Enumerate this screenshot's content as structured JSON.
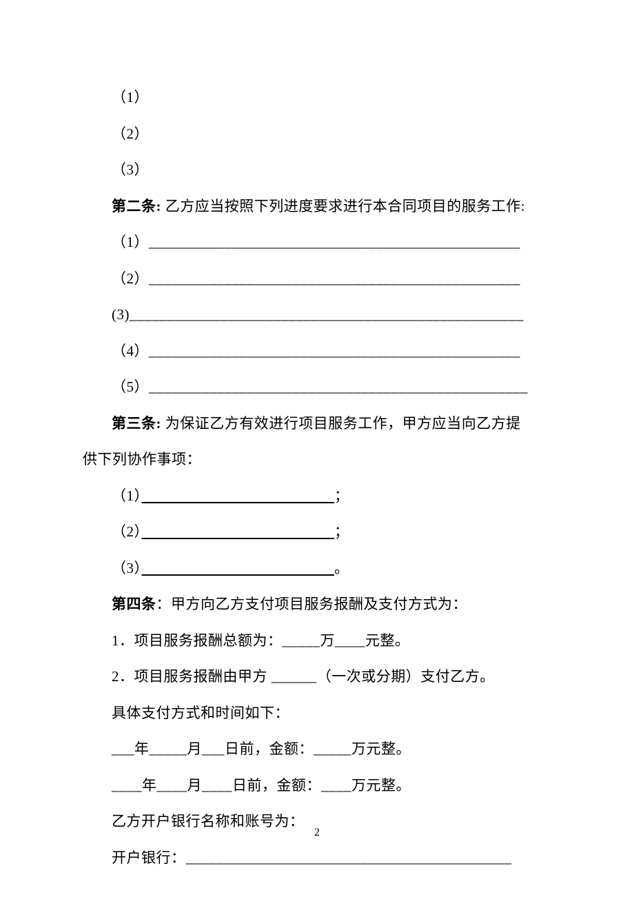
{
  "items_section1": {
    "item1": "（1）",
    "item2": "（2）",
    "item3": "（3）"
  },
  "article2": {
    "title": "第二条:",
    "text": " 乙方应当按照下列进度要求进行本合同项目的服务工作:",
    "item1": "（1）_________________________________________________",
    "item2": "（2）_________________________________________________",
    "item3": "(3)____________________________________________________",
    "item4": "（4）_________________________________________________",
    "item5": "（5）__________________________________________________"
  },
  "article3": {
    "title": "第三条:",
    "text": " 为保证乙方有效进行项目服务工作，甲方应当向乙方提",
    "text_cont": "供下列协作事项：",
    "item1_prefix": "（1）",
    "item1_suffix": "；",
    "item1_underline": "　　　　　　　　　　　　　",
    "item2_prefix": "（2）",
    "item2_suffix": "；",
    "item2_underline": "　　　　　　　　　　　　　",
    "item3_prefix": "（3）",
    "item3_suffix": "。",
    "item3_underline": "　　　　　　　　　　　　　"
  },
  "article4": {
    "title": "第四条",
    "text": "：甲方向乙方支付项目服务报酬及支付方式为：",
    "line1": "1．项目服务报酬总额为：_____万____元整。",
    "line2": "2．项目服务报酬由甲方  ______（一次或分期）支付乙方。",
    "line3": "具体支付方式和时间如下：",
    "line4": "___年_____月___日前，金额：_____万元整。",
    "line5": "____年____月____日前，金额：____万元整。",
    "line6": "乙方开户银行名称和账号为：",
    "line7": "开户银行：___________________________________________"
  },
  "page_number": "2"
}
